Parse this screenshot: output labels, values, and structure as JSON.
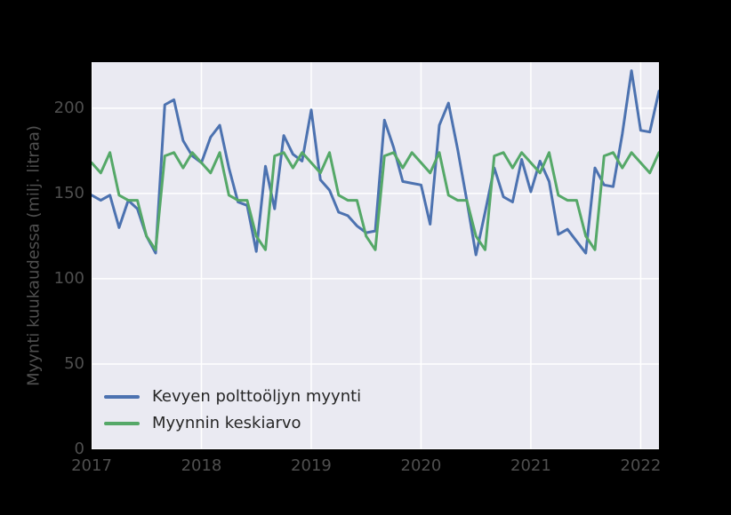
{
  "figure": {
    "background": "#000000",
    "plot_background": "#EAEAF2",
    "grid_color": "#FFFFFF",
    "tick_color": "#4f4f4f",
    "legend_text_color": "#262626"
  },
  "y_axis": {
    "label": "Myynti kuukaudessa (milj. litraa)",
    "tick_labels": [
      "0",
      "50",
      "100",
      "150",
      "200"
    ],
    "tick_values": [
      0,
      50,
      100,
      150,
      200
    ]
  },
  "x_axis": {
    "tick_labels": [
      "2017",
      "2018",
      "2019",
      "2020",
      "2021",
      "2022"
    ],
    "tick_month_index": [
      0,
      12,
      24,
      36,
      48,
      60
    ]
  },
  "legend": {
    "items": [
      {
        "label": "Kevyen polttoöljyn myynti",
        "color": "#4C72B0"
      },
      {
        "label": "Myynnin keskiarvo",
        "color": "#55A868"
      }
    ]
  },
  "chart_data": {
    "type": "line",
    "title": "",
    "xlabel": "",
    "ylabel": "Myynti kuukaudessa (milj. litraa)",
    "x_unit": "month",
    "x_start": "2017-01",
    "x_end": "2022-03",
    "xlim_months": [
      0,
      62
    ],
    "ylim": [
      0,
      227
    ],
    "grid": true,
    "legend_position": "lower left",
    "series": [
      {
        "name": "Kevyen polttoöljyn myynti",
        "color": "#4C72B0",
        "values": [
          149,
          146,
          149,
          130,
          146,
          141,
          125,
          115,
          202,
          205,
          181,
          172,
          168,
          183,
          190,
          165,
          145,
          143,
          116,
          166,
          141,
          184,
          173,
          169,
          199,
          158,
          152,
          139,
          137,
          131,
          127,
          128,
          193,
          177,
          157,
          156,
          155,
          132,
          190,
          203,
          176,
          146,
          114,
          139,
          165,
          148,
          145,
          170,
          151,
          169,
          157,
          126,
          129,
          122,
          115,
          165,
          155,
          154,
          185,
          222,
          187,
          186,
          210
        ]
      },
      {
        "name": "Myynnin keskiarvo",
        "color": "#55A868",
        "values": [
          168,
          162,
          174,
          149,
          146,
          146,
          125,
          117,
          172,
          174,
          165,
          174,
          168,
          162,
          174,
          149,
          146,
          146,
          125,
          117,
          172,
          174,
          165,
          174,
          168,
          162,
          174,
          149,
          146,
          146,
          125,
          117,
          172,
          174,
          165,
          174,
          168,
          162,
          174,
          149,
          146,
          146,
          125,
          117,
          172,
          174,
          165,
          174,
          168,
          162,
          174,
          149,
          146,
          146,
          125,
          117,
          172,
          174,
          165,
          174,
          168,
          162,
          174
        ]
      }
    ]
  }
}
